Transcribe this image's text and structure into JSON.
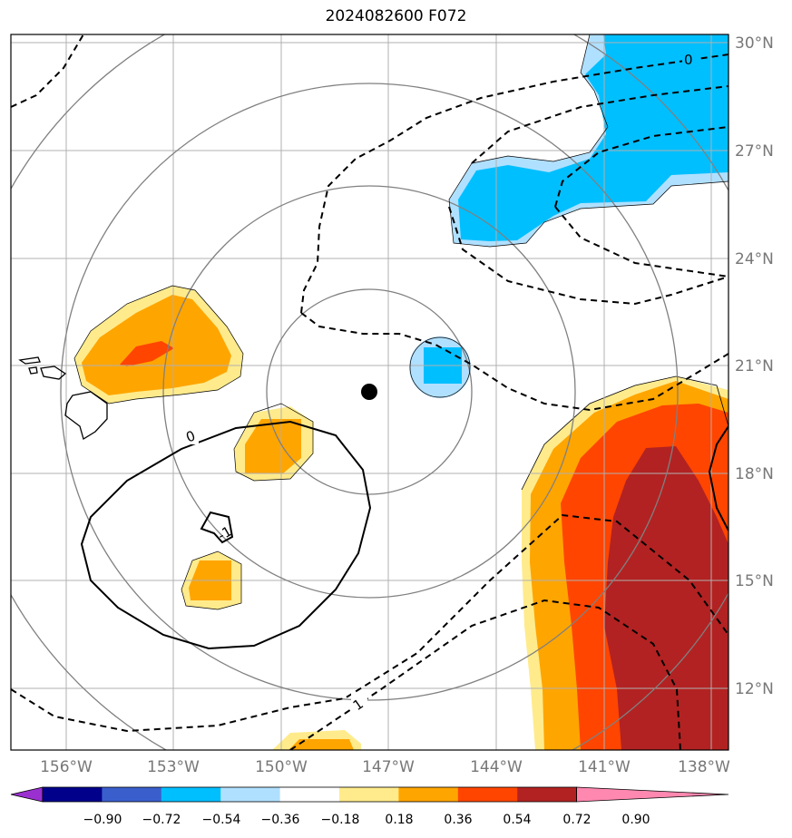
{
  "title": "2024082600 F072",
  "longitude_labels": [
    "156°W",
    "153°W",
    "150°W",
    "147°W",
    "144°W",
    "141°W",
    "138°W"
  ],
  "latitude_labels": [
    "30°N",
    "27°N",
    "24°N",
    "21°N",
    "18°N",
    "15°N",
    "12°N"
  ],
  "colorbar": {
    "ticks": [
      "−0.90",
      "−0.72",
      "−0.54",
      "−0.36",
      "−0.18",
      "0.18",
      "0.36",
      "0.54",
      "0.72",
      "0.90"
    ],
    "colors": [
      "#9b30d0",
      "#00008b",
      "#3a5fcd",
      "#00bfff",
      "#b0e0ff",
      "#ffffff",
      "#ffeb8c",
      "#ffa500",
      "#ff4500",
      "#b22222",
      "#ff88b0"
    ]
  },
  "contour_labels": {
    "zero_top": "0",
    "zero_left": "0",
    "neg_one": "-1",
    "one": "1"
  },
  "storm_center": {
    "lon": "147.6°W",
    "lat": "20.3°N"
  }
}
